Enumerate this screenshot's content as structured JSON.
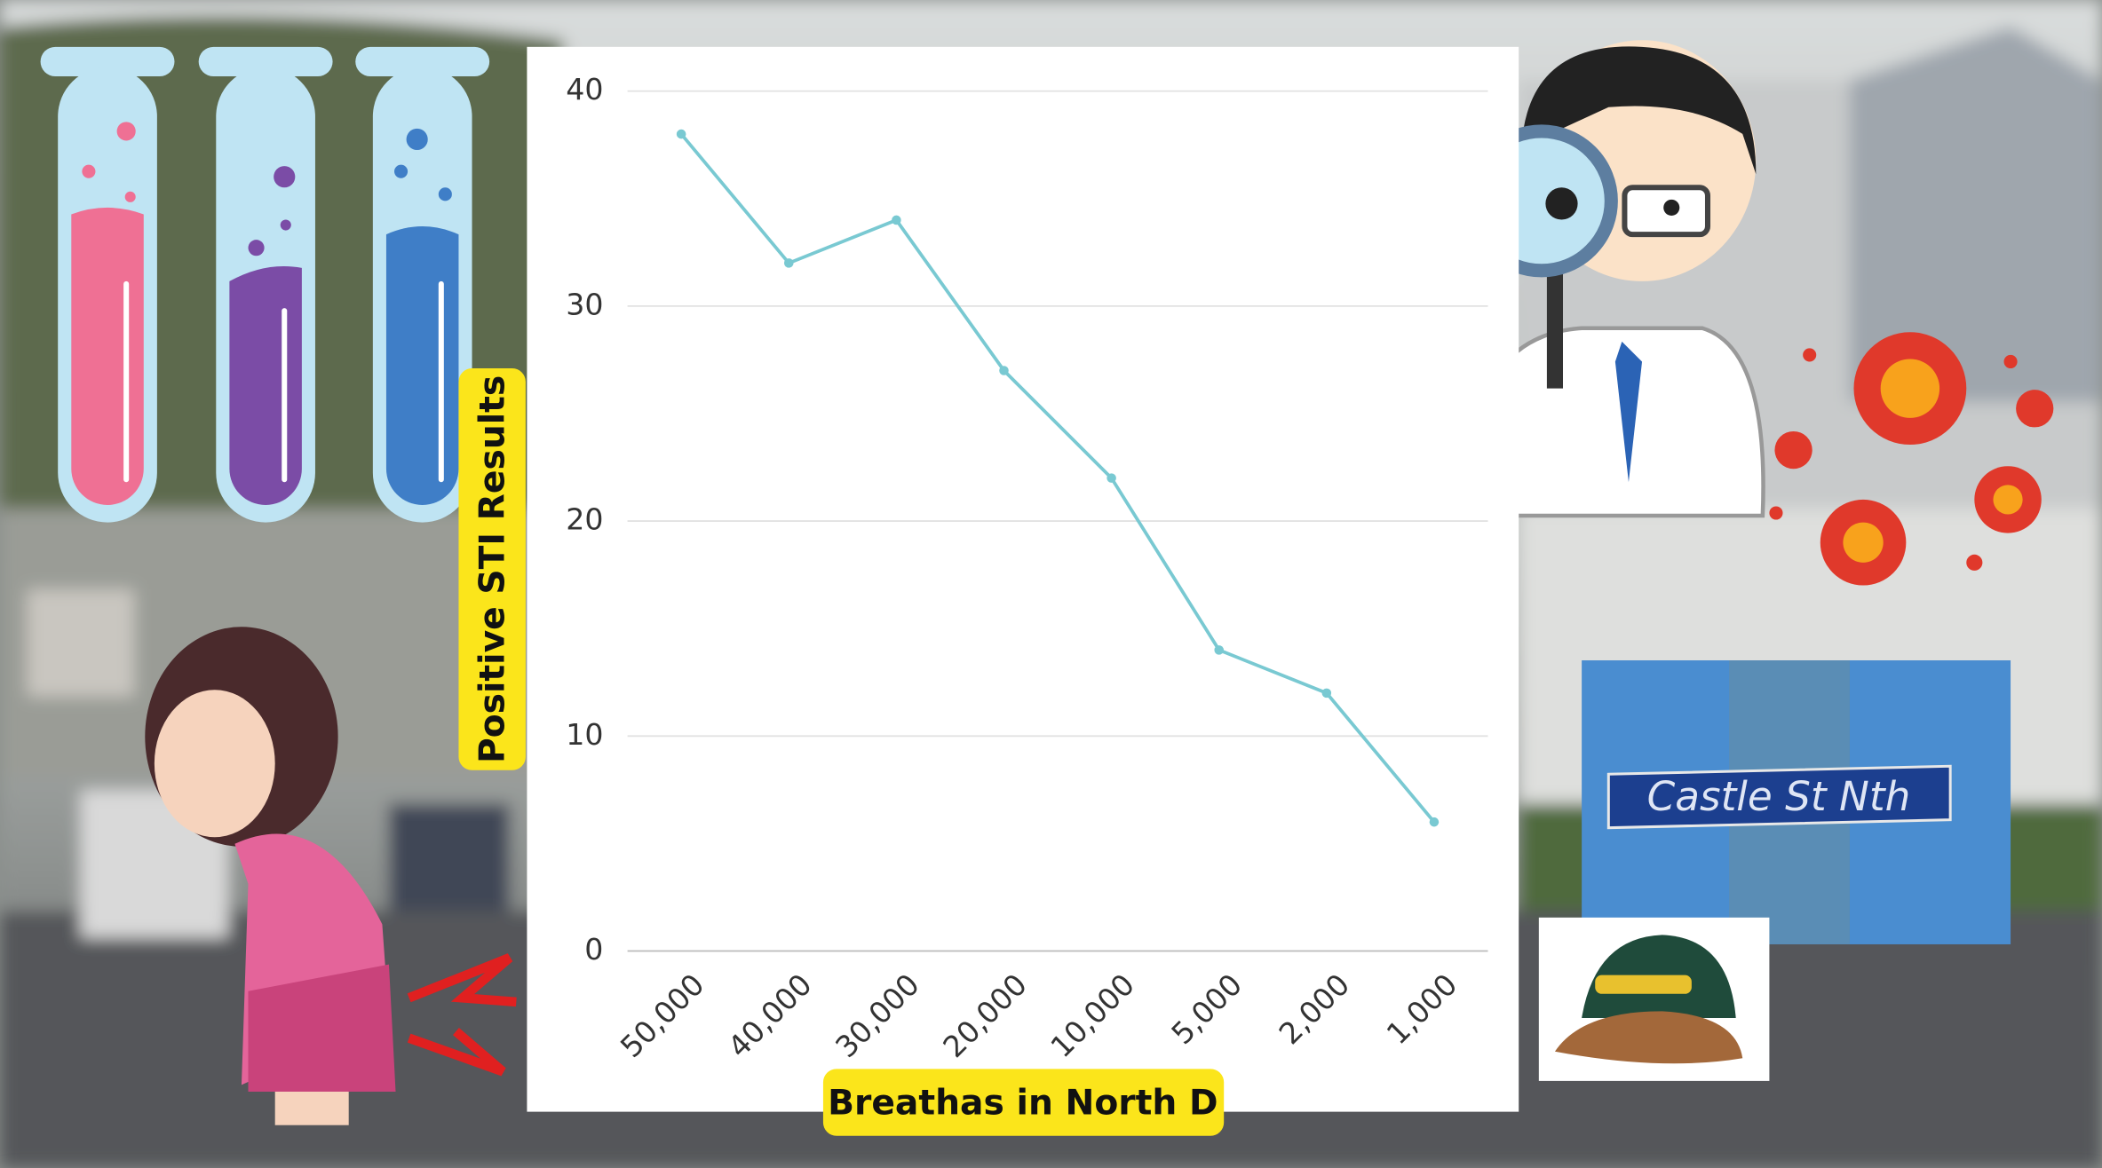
{
  "chart_data": {
    "type": "line",
    "categories": [
      "50,000",
      "40,000",
      "30,000",
      "20,000",
      "10,000",
      "5,000",
      "2,000",
      "1,000"
    ],
    "values": [
      38,
      32,
      34,
      27,
      22,
      14,
      12,
      6
    ],
    "color": "#79c9d2",
    "ylim": [
      0,
      40
    ],
    "yticks": [
      0,
      10,
      20,
      30,
      40
    ],
    "grid": true,
    "xlabel": "Breathas in North D",
    "ylabel": "Positive STI Results",
    "sign_text": "Castle St Nth"
  }
}
